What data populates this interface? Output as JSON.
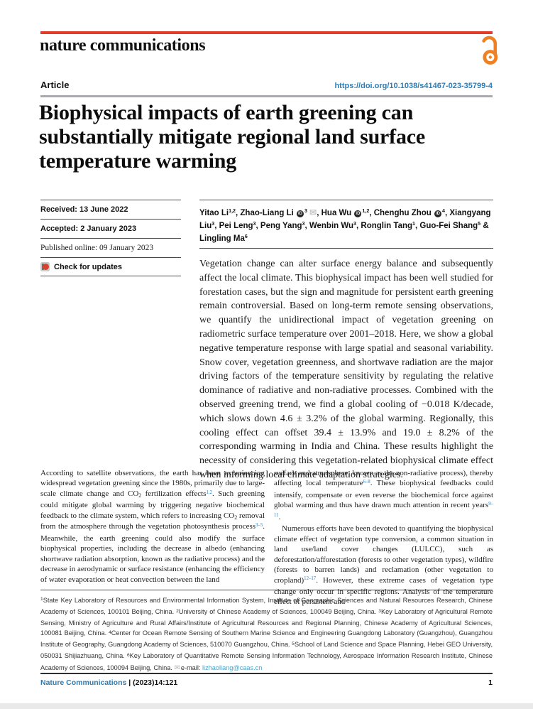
{
  "header": {
    "journal_name": "nature communications",
    "article_label": "Article",
    "doi": "https://doi.org/10.1038/s41467-023-35799-4",
    "accent_red": "#e23b28",
    "open_access_orange": "#f08123",
    "link_blue": "#2a7db8"
  },
  "title": "Biophysical impacts of earth greening can substantially mitigate regional land surface temperature warming",
  "dates": {
    "received": "Received: 13 June 2022",
    "accepted": "Accepted: 2 January 2023",
    "published": "Published online: 09 January 2023",
    "check_updates": "Check for updates"
  },
  "authors": {
    "segments": [
      {
        "t": "Yitao Li"
      },
      {
        "t": "1,2",
        "s": "sup"
      },
      {
        "t": ", Zhao-Liang Li "
      },
      {
        "s": "orcid"
      },
      {
        "t": "3",
        "s": "sup"
      },
      {
        "t": " "
      },
      {
        "s": "mail"
      },
      {
        "t": ", Hua Wu "
      },
      {
        "s": "orcid"
      },
      {
        "t": "1,2",
        "s": "sup"
      },
      {
        "t": ", Chenghu Zhou "
      },
      {
        "s": "orcid"
      },
      {
        "t": "4",
        "s": "sup"
      },
      {
        "t": ", Xiangyang Liu"
      },
      {
        "t": "3",
        "s": "sup"
      },
      {
        "t": ", Pei Leng"
      },
      {
        "t": "3",
        "s": "sup"
      },
      {
        "t": ", Peng Yang"
      },
      {
        "t": "3",
        "s": "sup"
      },
      {
        "t": ", Wenbin Wu"
      },
      {
        "t": "3",
        "s": "sup"
      },
      {
        "t": ", Ronglin Tang"
      },
      {
        "t": "1",
        "s": "sup"
      },
      {
        "t": ", Guo-Fei Shang"
      },
      {
        "t": "5",
        "s": "sup"
      },
      {
        "t": " & Lingling Ma"
      },
      {
        "t": "6",
        "s": "sup"
      }
    ]
  },
  "abstract": "Vegetation change can alter surface energy balance and subsequently affect the local climate. This biophysical impact has been well studied for forestation cases, but the sign and magnitude for persistent earth greening remain controversial. Based on long-term remote sensing observations, we quantify the unidirectional impact of vegetation greening on radiometric surface temperature over 2001–2018. Here, we show a global negative temperature response with large spatial and seasonal variability. Snow cover, vegetation greenness, and shortwave radiation are the major driving factors of the temperature sensitivity by regulating the relative dominance of radiative and non-radiative processes. Combined with the observed greening trend, we find a global cooling of −0.018 K/decade, which slows down 4.6 ± 3.2% of the global warming. Regionally, this cooling effect can offset 39.4 ± 13.9% and 19.0 ± 8.2% of the corresponding warming in India and China. These results highlight the necessity of considering this vegetation-related biophysical climate effect when informing local climate adaptation strategies.",
  "body": {
    "left_p1": [
      {
        "t": "According to satellite observations, the earth has been experiencing widespread vegetation greening since the 1980s, primarily due to large-scale climate change and CO"
      },
      {
        "t": "2",
        "s": "sub"
      },
      {
        "t": " fertilization effects"
      },
      {
        "t": "1,2",
        "s": "suplink"
      },
      {
        "t": ". Such greening could mitigate global warming by triggering negative biochemical feedback to the climate system, which refers to increasing CO"
      },
      {
        "t": "2",
        "s": "sub"
      },
      {
        "t": " removal from the atmosphere through the vegetation photosynthesis process"
      },
      {
        "t": "3–5",
        "s": "suplink"
      },
      {
        "t": ". Meanwhile, the earth greening could also modify the surface biophysical properties, including the decrease in albedo (enhancing shortwave radiation absorption, known as the radiative process) and the decrease in aerodynamic or surface resistance (enhancing the efficiency of water evaporation or heat convection between the land"
      }
    ],
    "right_p1": [
      {
        "t": "surface and atmosphere, known as the non-radiative process), thereby affecting local temperature"
      },
      {
        "t": "6–8",
        "s": "suplink"
      },
      {
        "t": ". These biophysical feedbacks could intensify, compensate or even reverse the biochemical force against global warming and thus have drawn much attention in recent years"
      },
      {
        "t": "9–11",
        "s": "suplink"
      },
      {
        "t": "."
      }
    ],
    "right_p2": [
      {
        "t": "Numerous efforts have been devoted to quantifying the biophysical climate effect of vegetation type conversion, a common situation in land use/land cover changes (LULCC), such as deforestation/afforestation (forests to other vegetation types), wildfire (forests to barren lands) and reclamation (other vegetation to cropland)"
      },
      {
        "t": "12–17",
        "s": "suplink"
      },
      {
        "t": ". However, these extreme cases of vegetation type change only occur in specific regions. Analysis of the temperature effect of persistent and"
      }
    ]
  },
  "footnotes": {
    "segments": [
      {
        "t": "1",
        "s": "fnsup"
      },
      {
        "t": "State Key Laboratory of Resources and Environmental Information System, Institute of Geographic Sciences and Natural Resources Research, Chinese Academy of Sciences, 100101 Beijing, China. "
      },
      {
        "t": "2",
        "s": "fnsup"
      },
      {
        "t": "University of Chinese Academy of Sciences, 100049 Beijing, China. "
      },
      {
        "t": "3",
        "s": "fnsup"
      },
      {
        "t": "Key Laboratory of Agricultural Remote Sensing, Ministry of Agriculture and Rural Affairs/Institute of Agricultural Resources and Regional Planning, Chinese Academy of Agricultural Sciences, 100081 Beijing, China. "
      },
      {
        "t": "4",
        "s": "fnsup"
      },
      {
        "t": "Center for Ocean Remote Sensing of Southern Marine Science and Engineering Guangdong Laboratory (Guangzhou), Guangzhou Institute of Geography, Guangdong Academy of Sciences, 510070 Guangzhou, China. "
      },
      {
        "t": "5",
        "s": "fnsup"
      },
      {
        "t": "School of Land Science and Space Planning, Hebei GEO University, 050031 Shijiazhuang, China. "
      },
      {
        "t": "6",
        "s": "fnsup"
      },
      {
        "t": "Key Laboratory of Quantitative Remote Sensing Information Technology, Aerospace Information Research Institute, Chinese Academy of Sciences, 100094 Beijing, China. "
      },
      {
        "s": "mailsm"
      },
      {
        "t": "e-mail: "
      },
      {
        "t": "lizhaoliang@caas.cn",
        "s": "email"
      }
    ]
  },
  "footer": {
    "journal": "Nature Communications",
    "citation": " | (2023)14:121",
    "page_number": "1"
  }
}
